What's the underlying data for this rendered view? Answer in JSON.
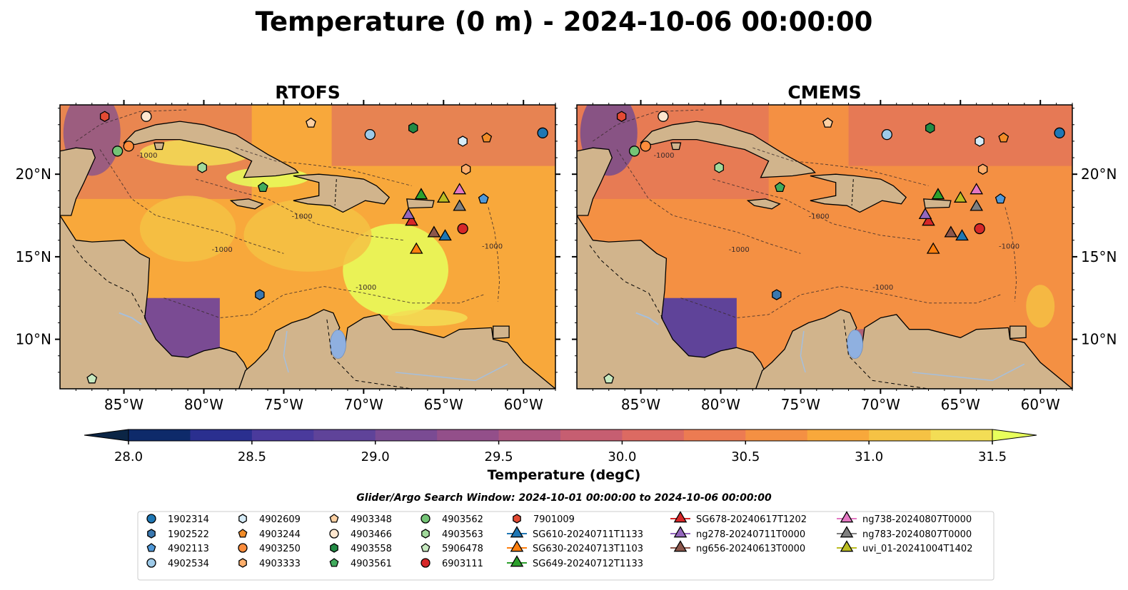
{
  "figure": {
    "title": "Temperature (0 m) - 2024-10-06 00:00:00",
    "search_window": "Glider/Argo Search Window: 2024-10-01 00:00:00 to 2024-10-06 00:00:00"
  },
  "colorbar": {
    "label": "Temperature (degC)",
    "min": 28.0,
    "max": 31.5,
    "step": 0.25,
    "ticks": [
      "28.0",
      "28.5",
      "29.0",
      "29.5",
      "30.0",
      "30.5",
      "31.0",
      "31.5"
    ],
    "colors": [
      "#0b2545",
      "#0e2a6a",
      "#2a2f8f",
      "#4a3a9c",
      "#5f4399",
      "#7a4b93",
      "#934f8a",
      "#ad567f",
      "#c65e71",
      "#dc6a62",
      "#ec7b52",
      "#f49043",
      "#f8a83b",
      "#f5c244",
      "#f3dd55",
      "#e8ff5c"
    ],
    "extend": "both"
  },
  "colors": {
    "land": "#d1b48c",
    "lake": "#8fb0e0",
    "river": "#a5bfdd",
    "ocean_base": "#e0773f",
    "deep_pacific": "#4b3b95",
    "coast": "#000000"
  },
  "chart_data": [
    {
      "type": "heatmap",
      "title": "RTOFS",
      "lon_range": [
        -89,
        -58
      ],
      "lat_range": [
        7,
        24.2
      ],
      "x_ticks": [
        "85°W",
        "80°W",
        "75°W",
        "70°W",
        "65°W",
        "60°W"
      ],
      "y_ticks": [
        "10°N",
        "15°N",
        "20°N"
      ],
      "y_tick_side": "left",
      "warm_zone_temp": 31.5,
      "caribbean_mean_temp": 30.9,
      "pacific_temp": 29.0,
      "gulf_temp": 30.2
    },
    {
      "type": "heatmap",
      "title": "CMEMS",
      "lon_range": [
        -89,
        -58
      ],
      "lat_range": [
        7,
        24.2
      ],
      "x_ticks": [
        "85°W",
        "80°W",
        "75°W",
        "70°W",
        "65°W",
        "60°W"
      ],
      "y_ticks": [
        "10°N",
        "15°N",
        "20°N"
      ],
      "y_tick_side": "right",
      "warm_zone_temp": 30.6,
      "caribbean_mean_temp": 30.6,
      "pacific_temp": 28.9,
      "gulf_temp": 30.1
    }
  ],
  "contours": {
    "label": "-1000"
  },
  "platforms": [
    {
      "name": "1902314",
      "marker": "circle",
      "color": "#1f77b4",
      "lon": -58.8,
      "lat": 22.5
    },
    {
      "name": "1902522",
      "marker": "hexagon",
      "color": "#3a78b0",
      "lon": -76.5,
      "lat": 12.7
    },
    {
      "name": "4902113",
      "marker": "pentagon",
      "color": "#4f98d8",
      "lon": -62.5,
      "lat": 18.5
    },
    {
      "name": "4902534",
      "marker": "circle",
      "color": "#9ecae8",
      "lon": -69.6,
      "lat": 22.4
    },
    {
      "name": "4902609",
      "marker": "hexagon",
      "color": "#d6ecf8",
      "lon": -63.8,
      "lat": 22.0
    },
    {
      "name": "4903244",
      "marker": "pentagon",
      "color": "#f28c28",
      "lon": -62.3,
      "lat": 22.2
    },
    {
      "name": "4903250",
      "marker": "circle",
      "color": "#fd8d3c",
      "lon": -84.7,
      "lat": 21.7
    },
    {
      "name": "4903333",
      "marker": "hexagon",
      "color": "#fdae6b",
      "lon": -63.6,
      "lat": 20.3
    },
    {
      "name": "4903348",
      "marker": "pentagon",
      "color": "#fdd0a2",
      "lon": -73.3,
      "lat": 23.1
    },
    {
      "name": "4903466",
      "marker": "circle",
      "color": "#fee6ce",
      "lon": -83.6,
      "lat": 23.5
    },
    {
      "name": "4903558",
      "marker": "hexagon",
      "color": "#238b45",
      "lon": -66.9,
      "lat": 22.8
    },
    {
      "name": "4903561",
      "marker": "pentagon",
      "color": "#41ab5d",
      "lon": -76.3,
      "lat": 19.2
    },
    {
      "name": "4903562",
      "marker": "circle",
      "color": "#74c476",
      "lon": -85.4,
      "lat": 21.4
    },
    {
      "name": "4903563",
      "marker": "hexagon",
      "color": "#a1d99b",
      "lon": -80.1,
      "lat": 20.4
    },
    {
      "name": "5906478",
      "marker": "pentagon",
      "color": "#c7e9c0",
      "lon": -87.0,
      "lat": 7.6
    },
    {
      "name": "6903111",
      "marker": "circle",
      "color": "#d62728",
      "lon": -63.8,
      "lat": 16.7
    },
    {
      "name": "7901009",
      "marker": "hexagon",
      "color": "#e34a33",
      "lon": -86.2,
      "lat": 23.5
    },
    {
      "name": "SG610-20240711T1133",
      "marker": "triangle",
      "color": "#1f77b4",
      "lon": -64.9,
      "lat": 16.3
    },
    {
      "name": "SG630-20240713T1103",
      "marker": "triangle",
      "color": "#ff7f0e",
      "lon": -66.7,
      "lat": 15.5
    },
    {
      "name": "SG649-20240712T1133",
      "marker": "triangle",
      "color": "#2ca02c",
      "lon": -66.4,
      "lat": 18.8
    },
    {
      "name": "SG678-20240617T1202",
      "marker": "triangle",
      "color": "#d62728",
      "lon": -67.0,
      "lat": 17.2
    },
    {
      "name": "ng278-20240711T0000",
      "marker": "triangle",
      "color": "#9467bd",
      "lon": -67.2,
      "lat": 17.6
    },
    {
      "name": "ng656-20240613T0000",
      "marker": "triangle",
      "color": "#8c564b",
      "lon": -65.6,
      "lat": 16.5
    },
    {
      "name": "ng738-20240807T0000",
      "marker": "triangle",
      "color": "#e377c2",
      "lon": -64.0,
      "lat": 19.1
    },
    {
      "name": "ng783-20240807T0000",
      "marker": "triangle",
      "color": "#7f7f7f",
      "lon": -64.0,
      "lat": 18.1
    },
    {
      "name": "uvi_01-20241004T1402",
      "marker": "triangle",
      "color": "#bcbd22",
      "lon": -65.0,
      "lat": 18.6
    }
  ]
}
